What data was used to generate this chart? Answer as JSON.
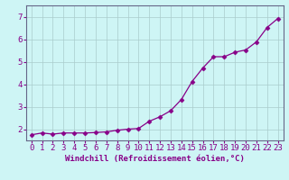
{
  "x": [
    0,
    1,
    2,
    3,
    4,
    5,
    6,
    7,
    8,
    9,
    10,
    11,
    12,
    13,
    14,
    15,
    16,
    17,
    18,
    19,
    20,
    21,
    22,
    23
  ],
  "y": [
    1.75,
    1.83,
    1.78,
    1.83,
    1.83,
    1.83,
    1.85,
    1.88,
    1.95,
    2.0,
    2.03,
    2.35,
    2.55,
    2.82,
    3.32,
    4.12,
    4.72,
    5.22,
    5.22,
    5.42,
    5.52,
    5.88,
    6.52,
    6.92
  ],
  "line_color": "#880088",
  "marker": "D",
  "marker_size": 2.5,
  "bg_color": "#cef5f5",
  "grid_color": "#aacccc",
  "xlabel": "Windchill (Refroidissement éolien,°C)",
  "xlim_min": -0.5,
  "xlim_max": 23.5,
  "ylim_min": 1.5,
  "ylim_max": 7.5,
  "yticks": [
    2,
    3,
    4,
    5,
    6,
    7
  ],
  "xticks": [
    0,
    1,
    2,
    3,
    4,
    5,
    6,
    7,
    8,
    9,
    10,
    11,
    12,
    13,
    14,
    15,
    16,
    17,
    18,
    19,
    20,
    21,
    22,
    23
  ],
  "xlabel_fontsize": 6.5,
  "tick_fontsize": 6.5,
  "tick_color": "#880088",
  "spine_color": "#666688",
  "label_color": "#880088"
}
